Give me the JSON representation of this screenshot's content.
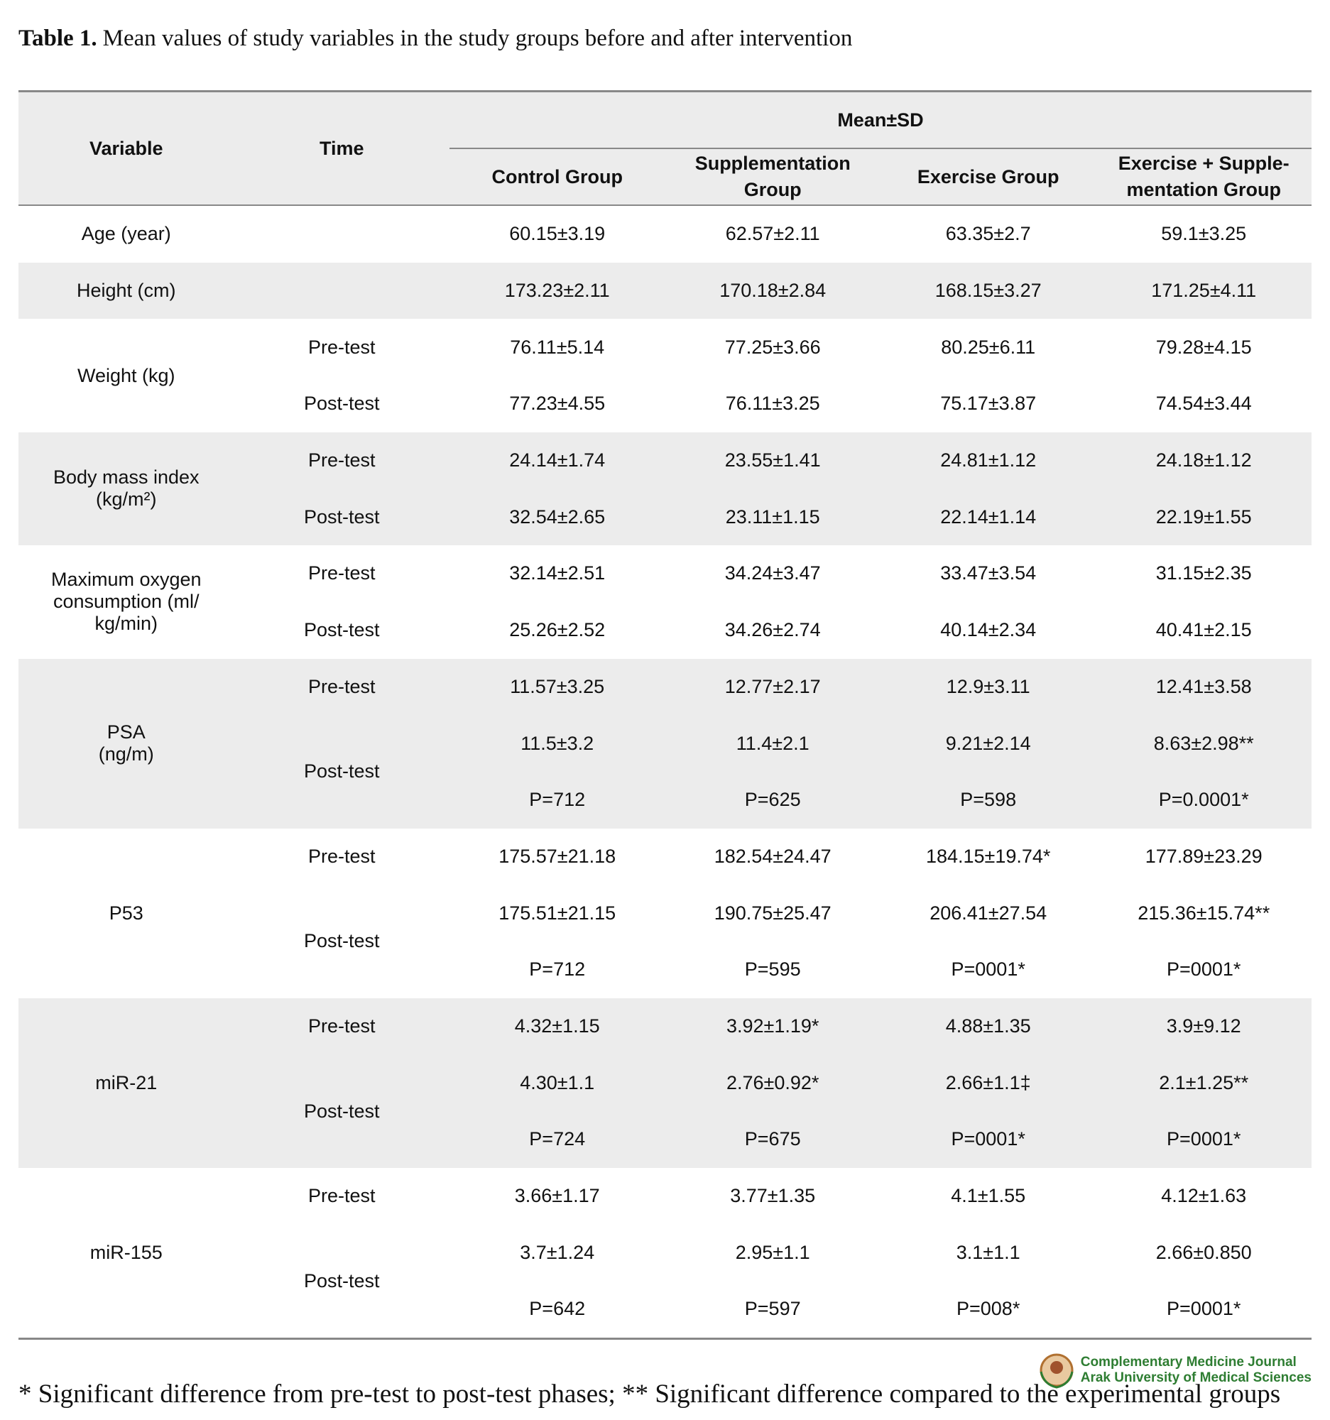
{
  "title": {
    "label": "Table 1.",
    "text": "Mean values of study variables in the study groups before and after intervention"
  },
  "table": {
    "headers": {
      "variable": "Variable",
      "time": "Time",
      "span": "Mean±SD",
      "groups": [
        "Control Group",
        "Supplementation Group",
        "Exercise Group",
        "Exercise + Supple-mentation Group"
      ]
    },
    "sections": [
      {
        "variable": "Age (year)",
        "times": [],
        "rows": [
          [
            "60.15±3.19",
            "62.57±2.11",
            "63.35±2.7",
            "59.1±3.25"
          ]
        ]
      },
      {
        "variable": "Height (cm)",
        "times": [],
        "rows": [
          [
            "173.23±2.11",
            "170.18±2.84",
            "168.15±3.27",
            "171.25±4.11"
          ]
        ]
      },
      {
        "variable": "Weight (kg)",
        "times": [
          "Pre-test",
          "Post-test"
        ],
        "rows": [
          [
            "76.11±5.14",
            "77.25±3.66",
            "80.25±6.11",
            "79.28±4.15"
          ],
          [
            "77.23±4.55",
            "76.11±3.25",
            "75.17±3.87",
            "74.54±3.44"
          ]
        ]
      },
      {
        "variable": "Body mass index\n(kg/m²)",
        "times": [
          "Pre-test",
          "Post-test"
        ],
        "rows": [
          [
            "24.14±1.74",
            "23.55±1.41",
            "24.81±1.12",
            "24.18±1.12"
          ],
          [
            "32.54±2.65",
            "23.11±1.15",
            "22.14±1.14",
            "22.19±1.55"
          ]
        ]
      },
      {
        "variable": "Maximum oxygen\nconsumption (ml/\nkg/min)",
        "times": [
          "Pre-test",
          "Post-test"
        ],
        "rows": [
          [
            "32.14±2.51",
            "34.24±3.47",
            "33.47±3.54",
            "31.15±2.35"
          ],
          [
            "25.26±2.52",
            "34.26±2.74",
            "40.14±2.34",
            "40.41±2.15"
          ]
        ]
      },
      {
        "variable": "PSA\n(ng/m)",
        "times": [
          "Pre-test",
          "Post-test"
        ],
        "rows": [
          [
            "11.57±3.25",
            "12.77±2.17",
            "12.9±3.11",
            "12.41±3.58"
          ],
          [
            "11.5±3.2",
            "11.4±2.1",
            "9.21±2.14",
            "8.63±2.98**"
          ],
          [
            "P=712",
            "P=625",
            "P=598",
            "P=0.0001*"
          ]
        ]
      },
      {
        "variable": "P53",
        "times": [
          "Pre-test",
          "Post-test"
        ],
        "rows": [
          [
            "175.57±21.18",
            "182.54±24.47",
            "184.15±19.74*",
            "177.89±23.29"
          ],
          [
            "175.51±21.15",
            "190.75±25.47",
            "206.41±27.54",
            "215.36±15.74**"
          ],
          [
            "P=712",
            "P=595",
            "P=0001*",
            "P=0001*"
          ]
        ]
      },
      {
        "variable": "miR-21",
        "times": [
          "Pre-test",
          "Post-test"
        ],
        "rows": [
          [
            "4.32±1.15",
            "3.92±1.19*",
            "4.88±1.35",
            "3.9±9.12"
          ],
          [
            "4.30±1.1",
            "2.76±0.92*",
            "2.66±1.1‡",
            "2.1±1.25**"
          ],
          [
            "P=724",
            "P=675",
            "P=0001*",
            "P=0001*"
          ]
        ]
      },
      {
        "variable": "miR-155",
        "times": [
          "Pre-test",
          "Post-test"
        ],
        "rows": [
          [
            "3.66±1.17",
            "3.77±1.35",
            "4.1±1.55",
            "4.12±1.63"
          ],
          [
            "3.7±1.24",
            "2.95±1.1",
            "3.1±1.1",
            "2.66±0.850"
          ],
          [
            "P=642",
            "P=597",
            "P=008*",
            "P=0001*"
          ]
        ]
      }
    ]
  },
  "logo": {
    "lines": [
      "Complementary Medicine Journal",
      "Arak University of Medical Sciences"
    ]
  },
  "footnote": "* Significant difference from pre-test to post-test phases; ** Significant difference compared to the experimental groups"
}
